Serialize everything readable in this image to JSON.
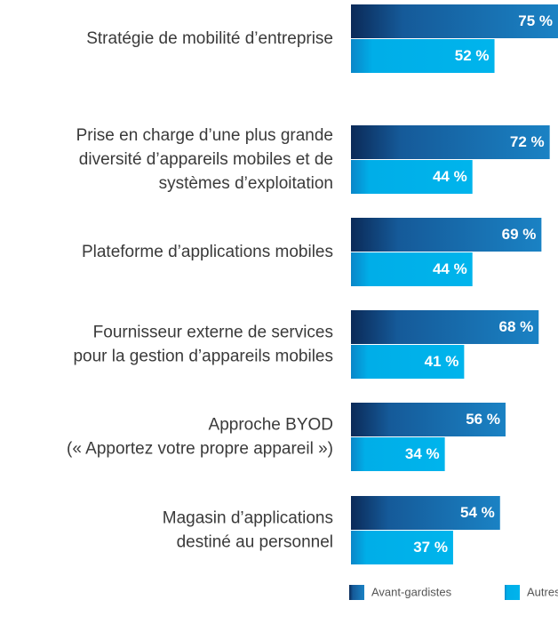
{
  "chart_data": {
    "type": "hbar",
    "categories": [
      [
        "Stratégie de mobilité d’entreprise"
      ],
      [
        "Prise en charge d’une plus grande",
        "diversité d’appareils mobiles et de",
        "systèmes d’exploitation"
      ],
      [
        "Plateforme d’applications mobiles"
      ],
      [
        "Fournisseur externe de services",
        "pour la gestion d’appareils mobiles"
      ],
      [
        "Approche BYOD",
        "(« Apportez votre propre appareil »)"
      ],
      [
        "Magasin d’applications",
        "destiné au personnel"
      ]
    ],
    "series": [
      {
        "name": "Avant-gardistes",
        "color": "#1a82c4",
        "values": [
          75,
          72,
          69,
          68,
          56,
          54
        ],
        "value_labels": [
          "75 %",
          "72 %",
          "69 %",
          "68 %",
          "56 %",
          "54 %"
        ]
      },
      {
        "name": "Autres",
        "color": "#00aee8",
        "values": [
          52,
          44,
          44,
          41,
          34,
          37
        ],
        "value_labels": [
          "52 %",
          "44 %",
          "44 %",
          "41 %",
          "34 %",
          "37 %"
        ]
      }
    ],
    "xlim": [
      0,
      75
    ]
  }
}
